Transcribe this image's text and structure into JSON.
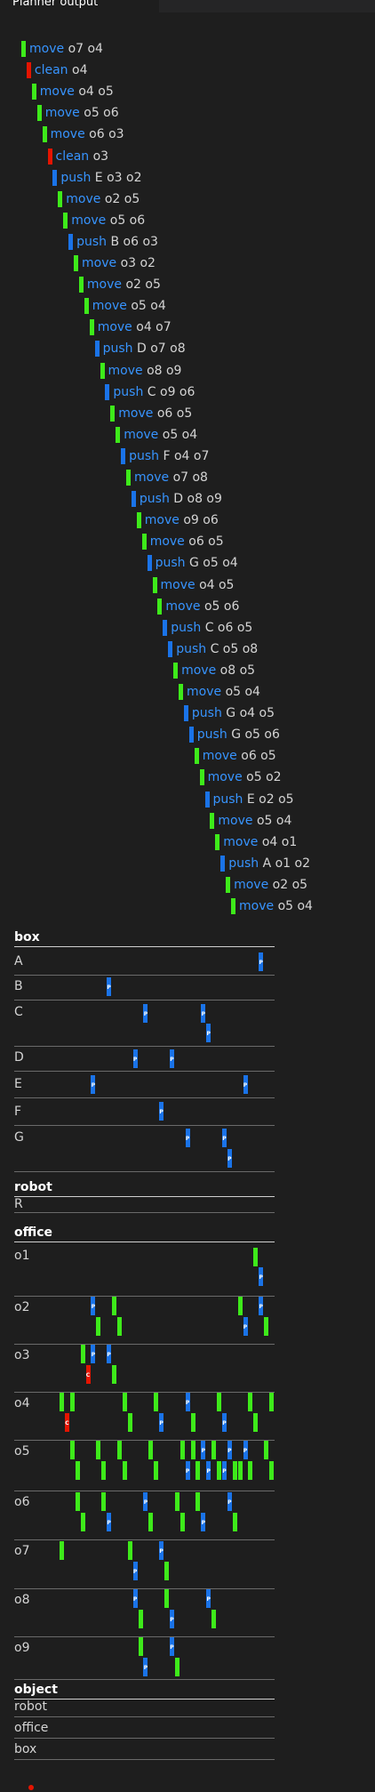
{
  "tab": {
    "title": "Planner output"
  },
  "colors": {
    "move": "#3eea1a",
    "clean": "#e51400",
    "push": "#1a73e8",
    "text_action": "#3794ff"
  },
  "steps": [
    {
      "action": "move",
      "args": "o7 o4"
    },
    {
      "action": "clean",
      "args": "o4"
    },
    {
      "action": "move",
      "args": "o4 o5"
    },
    {
      "action": "move",
      "args": "o5 o6"
    },
    {
      "action": "move",
      "args": "o6 o3"
    },
    {
      "action": "clean",
      "args": "o3"
    },
    {
      "action": "push",
      "args": "E o3 o2"
    },
    {
      "action": "move",
      "args": "o2 o5"
    },
    {
      "action": "move",
      "args": "o5 o6"
    },
    {
      "action": "push",
      "args": "B o6 o3"
    },
    {
      "action": "move",
      "args": "o3 o2"
    },
    {
      "action": "move",
      "args": "o2 o5"
    },
    {
      "action": "move",
      "args": "o5 o4"
    },
    {
      "action": "move",
      "args": "o4 o7"
    },
    {
      "action": "push",
      "args": "D o7 o8"
    },
    {
      "action": "move",
      "args": "o8 o9"
    },
    {
      "action": "push",
      "args": "C o9 o6"
    },
    {
      "action": "move",
      "args": "o6 o5"
    },
    {
      "action": "move",
      "args": "o5 o4"
    },
    {
      "action": "push",
      "args": "F o4 o7"
    },
    {
      "action": "move",
      "args": "o7 o8"
    },
    {
      "action": "push",
      "args": "D o8 o9"
    },
    {
      "action": "move",
      "args": "o9 o6"
    },
    {
      "action": "move",
      "args": "o6 o5"
    },
    {
      "action": "push",
      "args": "G o5 o4"
    },
    {
      "action": "move",
      "args": "o4 o5"
    },
    {
      "action": "move",
      "args": "o5 o6"
    },
    {
      "action": "push",
      "args": "C o6 o5"
    },
    {
      "action": "push",
      "args": "C o5 o8"
    },
    {
      "action": "move",
      "args": "o8 o5"
    },
    {
      "action": "move",
      "args": "o5 o4"
    },
    {
      "action": "push",
      "args": "G o4 o5"
    },
    {
      "action": "push",
      "args": "G o5 o6"
    },
    {
      "action": "move",
      "args": "o6 o5"
    },
    {
      "action": "move",
      "args": "o5 o2"
    },
    {
      "action": "push",
      "args": "E o2 o5"
    },
    {
      "action": "move",
      "args": "o5 o4"
    },
    {
      "action": "move",
      "args": "o4 o1"
    },
    {
      "action": "push",
      "args": "A o1 o2"
    },
    {
      "action": "move",
      "args": "o2 o5"
    },
    {
      "action": "move",
      "args": "o5 o4"
    }
  ],
  "sections": [
    {
      "title": "box",
      "rows": [
        "A",
        "B",
        "C",
        "D",
        "E",
        "F",
        "G"
      ]
    },
    {
      "title": "robot",
      "rows": [
        "R"
      ]
    },
    {
      "title": "office",
      "rows": [
        "o1",
        "o2",
        "o3",
        "o4",
        "o5",
        "o6",
        "o7",
        "o8",
        "o9"
      ]
    },
    {
      "title": "object",
      "rows": [
        "robot",
        "office",
        "box"
      ]
    }
  ]
}
